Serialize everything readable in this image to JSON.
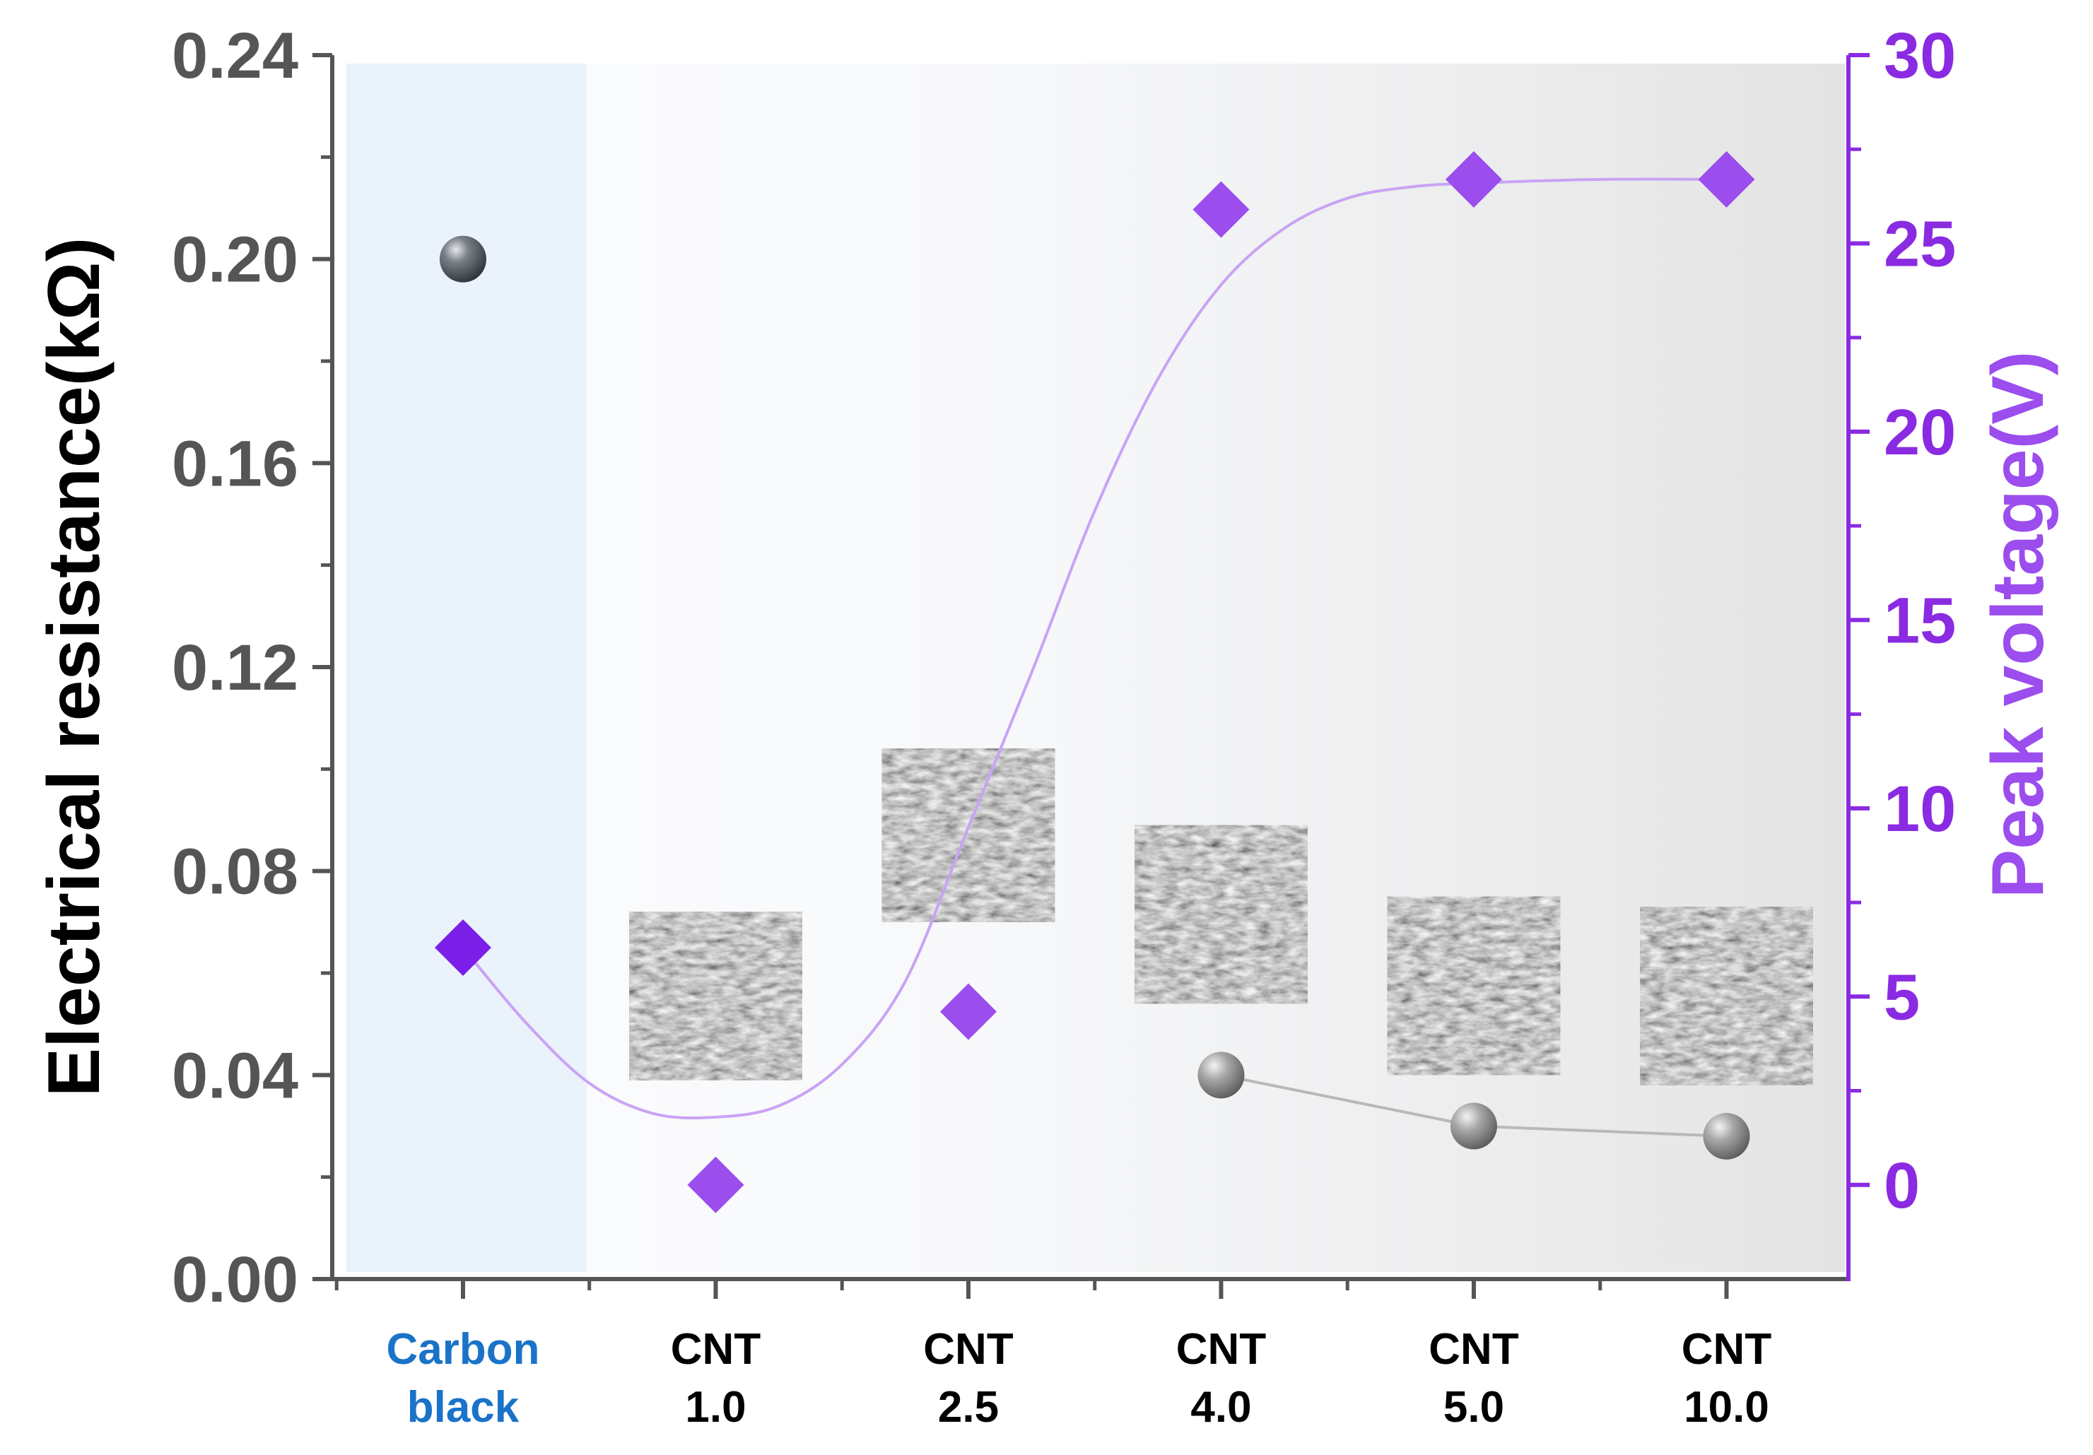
{
  "chart_data": {
    "type": "scatter",
    "categories": [
      {
        "line1": "Carbon",
        "line2": "black"
      },
      {
        "line1": "CNT",
        "line2": "1.0"
      },
      {
        "line1": "CNT",
        "line2": "2.5"
      },
      {
        "line1": "CNT",
        "line2": "4.0"
      },
      {
        "line1": "CNT",
        "line2": "5.0"
      },
      {
        "line1": "CNT",
        "line2": "10.0"
      }
    ],
    "highlight_category_color": "#1a73c8",
    "left_axis": {
      "label": "Electrical resistance(kΩ)",
      "ylim": [
        0,
        0.24
      ],
      "ticks": [
        "0.00",
        "0.04",
        "0.08",
        "0.12",
        "0.16",
        "0.20",
        "0.24"
      ],
      "color": "#555555"
    },
    "right_axis": {
      "label": "Peak voltage(V)",
      "ylim": [
        -2.5,
        30
      ],
      "ticks": [
        "0",
        "5",
        "10",
        "15",
        "20",
        "25",
        "30"
      ],
      "color": "#8a2be2"
    },
    "series": [
      {
        "axis": "left",
        "marker": "sphere",
        "points": [
          {
            "category": 0,
            "value": 0.2
          },
          {
            "category": 3,
            "value": 0.04
          },
          {
            "category": 4,
            "value": 0.03
          },
          {
            "category": 5,
            "value": 0.028
          }
        ],
        "connect_categories": [
          3,
          4,
          5
        ]
      },
      {
        "axis": "right",
        "marker": "diamond",
        "color": "#9b4dee",
        "points": [
          {
            "category": 0,
            "value": 6.3
          },
          {
            "category": 1,
            "value": 0.0
          },
          {
            "category": 2,
            "value": 4.6
          },
          {
            "category": 3,
            "value": 25.9
          },
          {
            "category": 4,
            "value": 26.7
          },
          {
            "category": 5,
            "value": 26.7
          }
        ],
        "trend_curve": [
          [
            0,
            6.3
          ],
          [
            0.25,
            4.3
          ],
          [
            0.5,
            2.7
          ],
          [
            0.75,
            1.9
          ],
          [
            1.0,
            1.8
          ],
          [
            1.25,
            2.1
          ],
          [
            1.5,
            3.2
          ],
          [
            1.75,
            5.4
          ],
          [
            2.0,
            9.5
          ],
          [
            2.25,
            13.6
          ],
          [
            2.5,
            17.9
          ],
          [
            2.75,
            21.4
          ],
          [
            3.0,
            23.9
          ],
          [
            3.25,
            25.4
          ],
          [
            3.5,
            26.2
          ],
          [
            3.75,
            26.5
          ],
          [
            4.0,
            26.6
          ],
          [
            4.5,
            26.7
          ],
          [
            5.0,
            26.7
          ]
        ]
      }
    ],
    "grid": false,
    "insets": [
      {
        "category": 1,
        "description": "SEM micrograph",
        "value_top": 0.072,
        "value_bottom": 0.039
      },
      {
        "category": 2,
        "description": "SEM micrograph",
        "value_top": 0.104,
        "value_bottom": 0.07
      },
      {
        "category": 3,
        "description": "SEM micrograph",
        "value_top": 0.089,
        "value_bottom": 0.054
      },
      {
        "category": 4,
        "description": "SEM micrograph",
        "value_top": 0.075,
        "value_bottom": 0.04
      },
      {
        "category": 5,
        "description": "SEM micrograph",
        "value_top": 0.073,
        "value_bottom": 0.038
      }
    ],
    "background": {
      "first_band_color": "#eaf2fb",
      "gradient_start": "#fcfdfe",
      "gradient_end": "#e4e4e4"
    }
  }
}
